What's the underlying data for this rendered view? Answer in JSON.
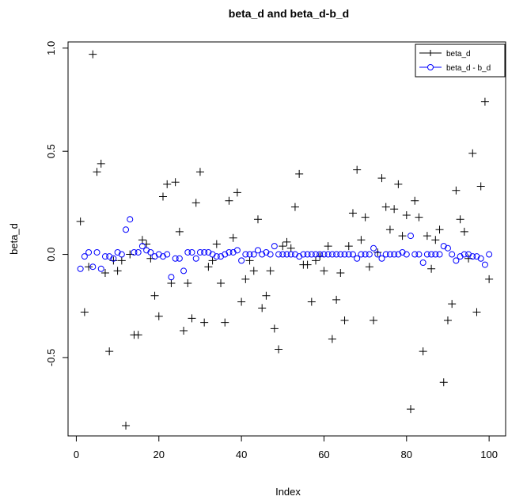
{
  "chart_data": {
    "type": "scatter",
    "title": "beta_d and beta_d-b_d",
    "xlabel": "Index",
    "ylabel": "beta_d",
    "xlim": [
      -2,
      104
    ],
    "ylim": [
      -0.88,
      1.03
    ],
    "xticks": [
      0,
      20,
      40,
      60,
      80,
      100
    ],
    "yticks": [
      -0.5,
      0.0,
      0.5,
      1.0
    ],
    "xtick_labels": [
      "0",
      "20",
      "40",
      "60",
      "80",
      "100"
    ],
    "ytick_labels": [
      "-0.5",
      "0.0",
      "0.5",
      "1.0"
    ],
    "legend_position": "top-right",
    "grid": false,
    "series": [
      {
        "name": "beta_d",
        "marker": "plus",
        "color": "#000000",
        "x": [
          1,
          2,
          3,
          4,
          5,
          6,
          7,
          8,
          9,
          10,
          11,
          12,
          13,
          14,
          15,
          16,
          17,
          18,
          19,
          20,
          21,
          22,
          23,
          24,
          25,
          26,
          27,
          28,
          29,
          30,
          31,
          32,
          33,
          34,
          35,
          36,
          37,
          38,
          39,
          40,
          41,
          42,
          43,
          44,
          45,
          46,
          47,
          48,
          49,
          50,
          51,
          52,
          53,
          54,
          55,
          56,
          57,
          58,
          59,
          60,
          61,
          62,
          63,
          64,
          65,
          66,
          67,
          68,
          69,
          70,
          71,
          72,
          73,
          74,
          75,
          76,
          77,
          78,
          79,
          80,
          81,
          82,
          83,
          84,
          85,
          86,
          87,
          88,
          89,
          90,
          91,
          92,
          93,
          94,
          95,
          96,
          97,
          98,
          99,
          100
        ],
        "y": [
          0.16,
          -0.28,
          -0.06,
          0.97,
          0.4,
          0.44,
          -0.09,
          -0.47,
          -0.03,
          -0.08,
          -0.03,
          -0.83,
          0.0,
          -0.39,
          -0.39,
          0.07,
          0.05,
          -0.02,
          -0.2,
          -0.3,
          0.28,
          0.34,
          -0.14,
          0.35,
          0.11,
          -0.37,
          -0.14,
          -0.31,
          0.25,
          0.4,
          -0.33,
          -0.06,
          -0.03,
          0.05,
          -0.14,
          -0.33,
          0.26,
          0.08,
          0.3,
          -0.23,
          -0.12,
          -0.03,
          -0.08,
          0.17,
          -0.26,
          -0.2,
          -0.08,
          -0.36,
          -0.46,
          0.04,
          0.06,
          0.03,
          0.23,
          0.39,
          -0.05,
          -0.05,
          -0.23,
          -0.03,
          -0.01,
          -0.08,
          0.04,
          -0.41,
          -0.22,
          -0.09,
          -0.32,
          0.04,
          0.2,
          0.41,
          0.07,
          0.18,
          -0.06,
          -0.32,
          0.01,
          0.37,
          0.23,
          0.12,
          0.22,
          0.34,
          0.09,
          0.19,
          -0.75,
          0.26,
          0.18,
          -0.47,
          0.09,
          -0.07,
          0.07,
          0.12,
          -0.62,
          -0.32,
          -0.24,
          0.31,
          0.17,
          0.11,
          -0.02,
          0.49,
          -0.28,
          0.33,
          0.74,
          -0.12
        ]
      },
      {
        "name": "beta_d - b_d",
        "marker": "circle",
        "color": "#0000ff",
        "x": [
          1,
          2,
          3,
          4,
          5,
          6,
          7,
          8,
          9,
          10,
          11,
          12,
          13,
          14,
          15,
          16,
          17,
          18,
          19,
          20,
          21,
          22,
          23,
          24,
          25,
          26,
          27,
          28,
          29,
          30,
          31,
          32,
          33,
          34,
          35,
          36,
          37,
          38,
          39,
          40,
          41,
          42,
          43,
          44,
          45,
          46,
          47,
          48,
          49,
          50,
          51,
          52,
          53,
          54,
          55,
          56,
          57,
          58,
          59,
          60,
          61,
          62,
          63,
          64,
          65,
          66,
          67,
          68,
          69,
          70,
          71,
          72,
          73,
          74,
          75,
          76,
          77,
          78,
          79,
          80,
          81,
          82,
          83,
          84,
          85,
          86,
          87,
          88,
          89,
          90,
          91,
          92,
          93,
          94,
          95,
          96,
          97,
          98,
          99,
          100
        ],
        "y": [
          -0.07,
          -0.01,
          0.01,
          -0.06,
          0.01,
          -0.07,
          -0.01,
          -0.01,
          -0.02,
          0.01,
          0.0,
          0.12,
          0.17,
          0.01,
          0.01,
          0.04,
          0.02,
          0.01,
          -0.01,
          0.0,
          -0.01,
          0.0,
          -0.11,
          -0.02,
          -0.02,
          -0.08,
          0.01,
          0.01,
          -0.02,
          0.01,
          0.01,
          0.01,
          0.0,
          -0.01,
          -0.01,
          0.0,
          0.01,
          0.01,
          0.02,
          -0.03,
          0.0,
          0.0,
          0.0,
          0.02,
          0.0,
          0.01,
          0.0,
          0.04,
          0.0,
          0.0,
          0.0,
          0.0,
          0.0,
          -0.01,
          0.0,
          0.0,
          0.0,
          0.0,
          0.0,
          0.0,
          0.0,
          0.0,
          0.0,
          0.0,
          0.0,
          0.0,
          0.0,
          -0.02,
          0.0,
          0.0,
          0.0,
          0.03,
          0.0,
          -0.02,
          0.0,
          0.0,
          0.0,
          0.0,
          0.01,
          0.0,
          0.09,
          0.0,
          0.0,
          -0.04,
          0.0,
          0.0,
          0.0,
          0.0,
          0.04,
          0.03,
          0.0,
          -0.03,
          -0.01,
          0.0,
          0.0,
          -0.01,
          -0.01,
          -0.02,
          -0.05,
          0.0
        ]
      }
    ]
  }
}
